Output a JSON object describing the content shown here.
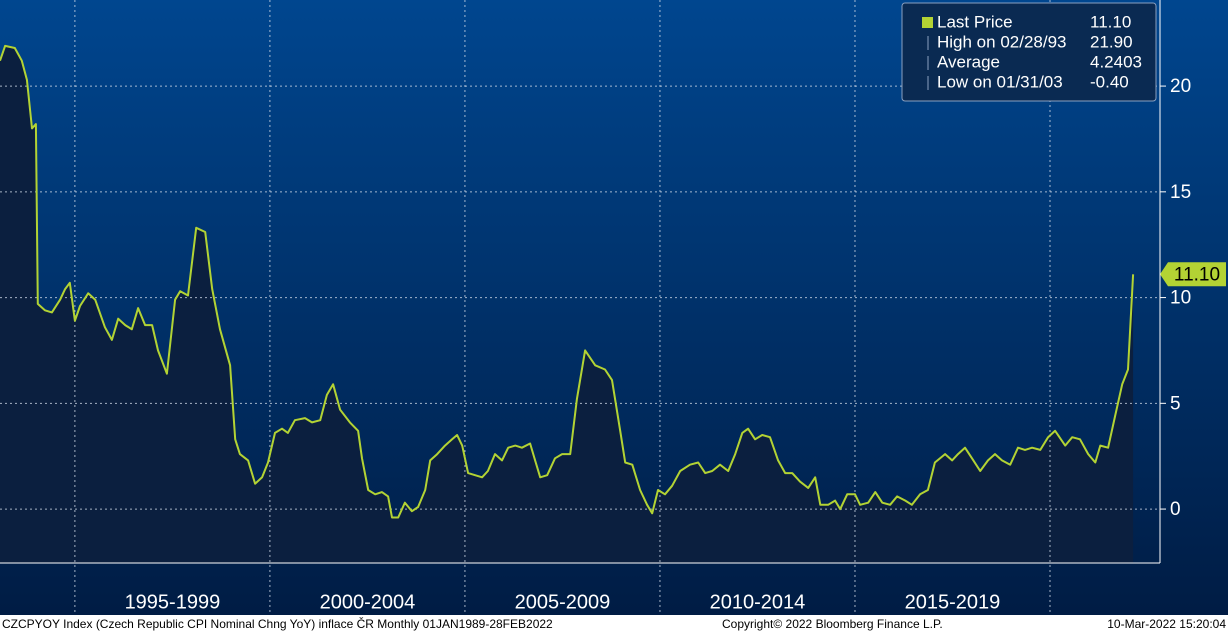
{
  "chart_data": {
    "type": "area-line",
    "series": [
      {
        "name": "Last Price",
        "color": "#b3d334",
        "x": [
          1993.08,
          1993.21,
          1993.46,
          1993.64,
          1993.77,
          1993.9,
          1994.0,
          1994.05,
          1994.23,
          1994.41,
          1994.62,
          1994.75,
          1994.87,
          1995.0,
          1995.13,
          1995.34,
          1995.52,
          1995.77,
          1995.95,
          1996.11,
          1996.29,
          1996.46,
          1996.62,
          1996.8,
          1996.98,
          1997.13,
          1997.36,
          1997.57,
          1997.7,
          1997.9,
          1998.11,
          1998.34,
          1998.52,
          1998.72,
          1998.98,
          1999.11,
          1999.23,
          1999.44,
          1999.62,
          1999.8,
          1999.95,
          2000.13,
          2000.31,
          2000.46,
          2000.64,
          2000.9,
          2001.08,
          2001.29,
          2001.46,
          2001.62,
          2001.8,
          2002.05,
          2002.26,
          2002.36,
          2002.52,
          2002.7,
          2002.87,
          2003.03,
          2003.13,
          2003.29,
          2003.46,
          2003.64,
          2003.8,
          2003.98,
          2004.11,
          2004.29,
          2004.49,
          2004.67,
          2004.8,
          2004.93,
          2005.08,
          2005.26,
          2005.44,
          2005.59,
          2005.77,
          2005.95,
          2006.11,
          2006.29,
          2006.46,
          2006.67,
          2006.8,
          2006.93,
          2007.11,
          2007.31,
          2007.49,
          2007.7,
          2007.87,
          2008.08,
          2008.34,
          2008.59,
          2008.77,
          2008.98,
          2009.11,
          2009.29,
          2009.49,
          2009.67,
          2009.8,
          2009.95,
          2010.13,
          2010.31,
          2010.52,
          2010.77,
          2010.98,
          2011.16,
          2011.34,
          2011.54,
          2011.75,
          2011.93,
          2012.11,
          2012.26,
          2012.44,
          2012.62,
          2012.82,
          2013.03,
          2013.21,
          2013.39,
          2013.59,
          2013.8,
          2013.98,
          2014.11,
          2014.31,
          2014.49,
          2014.62,
          2014.8,
          2015.0,
          2015.13,
          2015.34,
          2015.52,
          2015.7,
          2015.9,
          2016.08,
          2016.29,
          2016.46,
          2016.67,
          2016.87,
          2017.05,
          2017.31,
          2017.49,
          2017.64,
          2017.82,
          2018.0,
          2018.21,
          2018.41,
          2018.59,
          2018.77,
          2018.98,
          2019.18,
          2019.36,
          2019.54,
          2019.75,
          2019.95,
          2020.13,
          2020.39,
          2020.57,
          2020.77,
          2020.98,
          2021.16,
          2021.29,
          2021.49,
          2021.67,
          2021.85,
          2022.0,
          2022.13
        ],
        "values": [
          21.2,
          21.9,
          21.8,
          21.2,
          20.3,
          18.0,
          18.2,
          9.7,
          9.4,
          9.3,
          9.9,
          10.4,
          10.7,
          8.9,
          9.6,
          10.2,
          9.9,
          8.6,
          8.0,
          9.0,
          8.7,
          8.5,
          9.5,
          8.7,
          8.7,
          7.5,
          6.4,
          9.9,
          10.3,
          10.1,
          13.3,
          13.1,
          10.4,
          8.5,
          6.8,
          3.3,
          2.6,
          2.3,
          1.2,
          1.5,
          2.2,
          3.6,
          3.8,
          3.6,
          4.2,
          4.3,
          4.1,
          4.2,
          5.4,
          5.9,
          4.7,
          4.1,
          3.7,
          2.4,
          0.9,
          0.7,
          0.8,
          0.6,
          -0.4,
          -0.4,
          0.3,
          -0.1,
          0.1,
          0.9,
          2.3,
          2.6,
          3.0,
          3.3,
          3.5,
          3.0,
          1.7,
          1.6,
          1.5,
          1.8,
          2.6,
          2.3,
          2.9,
          3.0,
          2.9,
          3.1,
          2.3,
          1.5,
          1.6,
          2.4,
          2.6,
          2.6,
          5.2,
          7.5,
          6.8,
          6.6,
          6.1,
          3.7,
          2.2,
          2.1,
          0.9,
          0.2,
          -0.2,
          0.9,
          0.7,
          1.1,
          1.8,
          2.1,
          2.2,
          1.7,
          1.8,
          2.1,
          1.8,
          2.6,
          3.6,
          3.8,
          3.3,
          3.5,
          3.4,
          2.3,
          1.7,
          1.7,
          1.3,
          1.0,
          1.5,
          0.2,
          0.2,
          0.4,
          0.0,
          0.7,
          0.7,
          0.2,
          0.3,
          0.8,
          0.3,
          0.2,
          0.6,
          0.4,
          0.2,
          0.7,
          0.9,
          2.2,
          2.6,
          2.3,
          2.6,
          2.9,
          2.4,
          1.8,
          2.3,
          2.6,
          2.3,
          2.1,
          2.9,
          2.8,
          2.9,
          2.8,
          3.4,
          3.7,
          3.0,
          3.4,
          3.3,
          2.6,
          2.2,
          3.0,
          2.9,
          4.4,
          5.9,
          6.6,
          11.1
        ]
      }
    ],
    "xlim": [
      1993.08,
      2022.82
    ],
    "xgrid": [
      1995,
      2000,
      2005,
      2010,
      2015,
      2020
    ],
    "xticks": [
      {
        "value": 1997.5,
        "label": "1995-1999"
      },
      {
        "value": 2002.5,
        "label": "2000-2004"
      },
      {
        "value": 2007.5,
        "label": "2005-2009"
      },
      {
        "value": 2012.5,
        "label": "2010-2014"
      },
      {
        "value": 2017.5,
        "label": "2015-2019"
      }
    ],
    "ylim": [
      -2.55,
      24.07
    ],
    "yticks": [
      0,
      5,
      10,
      15,
      20
    ],
    "grid": true,
    "last_value_label": "11.10",
    "legend": [
      {
        "label": "Last Price",
        "value": "11.10"
      },
      {
        "label": "High on 02/28/93",
        "value": "21.90"
      },
      {
        "label": "Average",
        "value": "4.2403"
      },
      {
        "label": "Low on 01/31/03",
        "value": "-0.40"
      }
    ],
    "footer": {
      "source": "CZCPYOY Index (Czech Republic CPI Nominal Chng YoY) inflace ČR  Monthly 01JAN1989-28FEB2022",
      "copyright": "Copyright© 2022 Bloomberg Finance L.P.",
      "timestamp": "10-Mar-2022 15:20:04"
    }
  }
}
